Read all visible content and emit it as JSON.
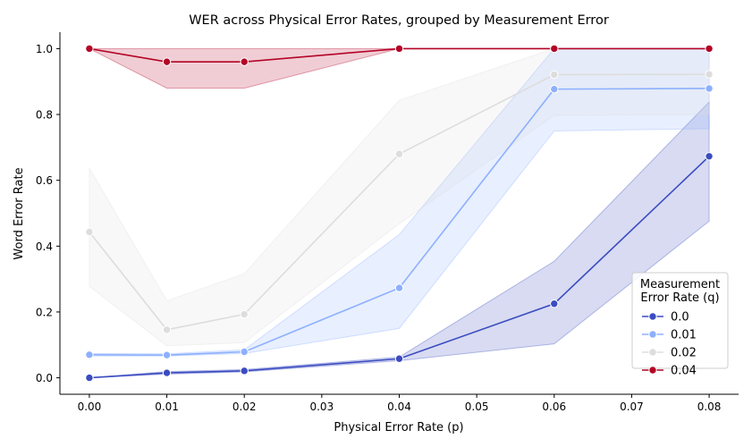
{
  "chart_data": {
    "type": "line",
    "title": "WER across Physical Error Rates, grouped by Measurement Error",
    "xlabel": "Physical Error Rate (p)",
    "ylabel": "Word Error Rate",
    "xlim": [
      -0.0038,
      0.0838
    ],
    "ylim": [
      -0.05,
      1.05
    ],
    "xticks": [
      0.0,
      0.01,
      0.02,
      0.03,
      0.04,
      0.05,
      0.06,
      0.07,
      0.08
    ],
    "xtick_labels": [
      "0.00",
      "0.01",
      "0.02",
      "0.03",
      "0.04",
      "0.05",
      "0.06",
      "0.07",
      "0.08"
    ],
    "yticks": [
      0.0,
      0.2,
      0.4,
      0.6,
      0.8,
      1.0
    ],
    "ytick_labels": [
      "0.0",
      "0.2",
      "0.4",
      "0.6",
      "0.8",
      "1.0"
    ],
    "grid": false,
    "legend": {
      "title_lines": [
        "Measurement",
        "Error Rate (q)"
      ],
      "placement": "lower-right"
    },
    "x": [
      0.0,
      0.01,
      0.02,
      0.04,
      0.06,
      0.08
    ],
    "series": [
      {
        "name": "0.0",
        "color": "#3b4cc0",
        "values": [
          0.0,
          0.015,
          0.021,
          0.058,
          0.225,
          0.673
        ],
        "ci_lower": [
          0.0,
          0.011,
          0.018,
          0.052,
          0.103,
          0.476
        ],
        "ci_upper": [
          0.0,
          0.019,
          0.025,
          0.063,
          0.354,
          0.838
        ]
      },
      {
        "name": "0.01",
        "color": "#8db0fe",
        "values": [
          0.07,
          0.069,
          0.079,
          0.273,
          0.877,
          0.879
        ],
        "ci_lower": [
          0.066,
          0.066,
          0.074,
          0.15,
          0.75,
          0.757
        ],
        "ci_upper": [
          0.074,
          0.073,
          0.085,
          0.435,
          1.0,
          1.0
        ]
      },
      {
        "name": "0.02",
        "color": "#dddddd",
        "values": [
          0.443,
          0.146,
          0.193,
          0.68,
          0.921,
          0.922
        ],
        "ci_lower": [
          0.278,
          0.097,
          0.107,
          0.468,
          0.797,
          0.8
        ],
        "ci_upper": [
          0.637,
          0.234,
          0.316,
          0.843,
          1.0,
          1.0
        ]
      },
      {
        "name": "0.04",
        "color": "#b40426",
        "values": [
          1.0,
          0.96,
          0.96,
          1.0,
          1.0,
          1.0
        ],
        "ci_lower": [
          1.0,
          0.88,
          0.88,
          1.0,
          1.0,
          1.0
        ],
        "ci_upper": [
          1.0,
          1.0,
          1.0,
          1.0,
          1.0,
          1.0
        ]
      }
    ]
  }
}
